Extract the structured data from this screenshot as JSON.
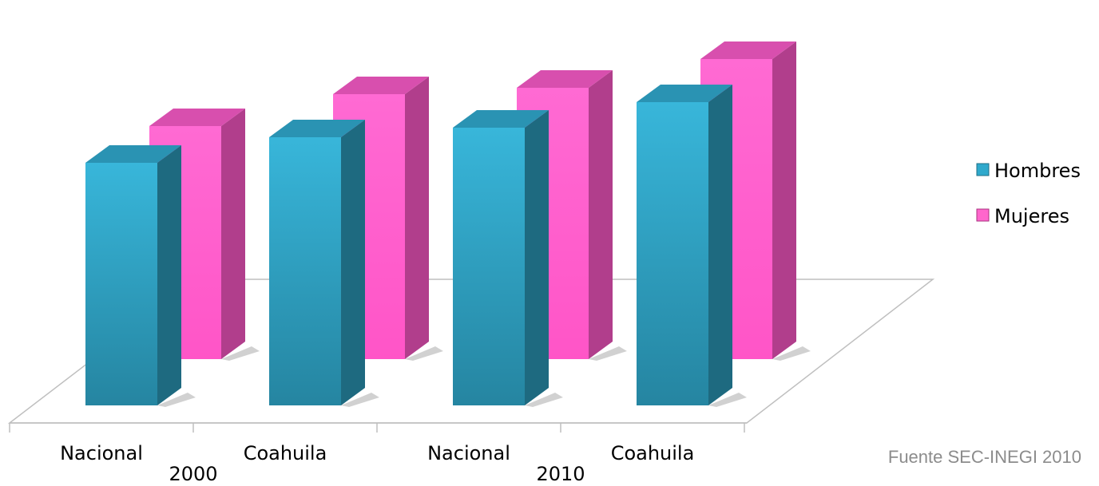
{
  "chart_data": {
    "type": "bar",
    "title": "",
    "xlabel": "",
    "ylabel": "",
    "categories": [
      "Nacional",
      "Coahuila",
      "Nacional",
      "Coahuila"
    ],
    "groups": [
      "2000",
      "2010"
    ],
    "series": [
      {
        "name": "Hombres",
        "color": "#2fa9cc",
        "values": [
          7.6,
          8.4,
          8.7,
          9.5
        ]
      },
      {
        "name": "Mujeres",
        "color": "#ff66cc",
        "values": [
          7.3,
          8.3,
          8.5,
          9.4
        ]
      }
    ],
    "ylim": [
      0,
      11
    ],
    "grid": false,
    "legend": "right"
  },
  "source": "Fuente SEC-INEGI 2010"
}
